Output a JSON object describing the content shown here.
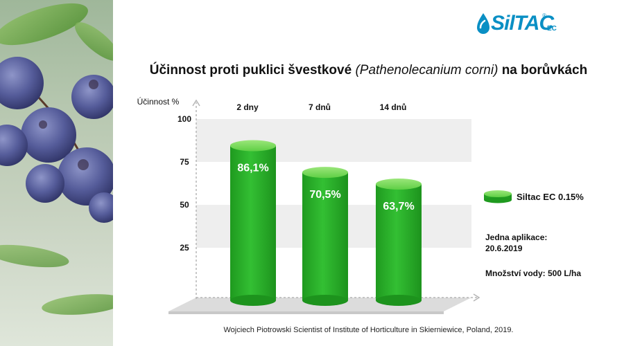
{
  "logo": {
    "brand": "SilTAC",
    "suffix": "EC",
    "registered": "®"
  },
  "title": {
    "main": "Účinnost proti puklici švestkové",
    "latin_name": "(Pathenolecanium corni)",
    "rest": "na borůvkách"
  },
  "chart_data": {
    "type": "bar",
    "title": "Účinnost proti puklici švestkové (Pathenolecanium corni) na borůvkách",
    "ylabel": "Účinnost %",
    "xlabel": "",
    "ylim": [
      0,
      100
    ],
    "yticks": [
      25,
      50,
      75,
      100
    ],
    "categories": [
      "2 dny",
      "7 dnů",
      "14 dnů"
    ],
    "series": [
      {
        "name": "Siltac EC 0.15%",
        "values": [
          86.1,
          70.5,
          63.7
        ],
        "labels": [
          "86,1%",
          "70,5%",
          "63,7%"
        ],
        "color": "#2db52d"
      }
    ],
    "grid": "alternating horizontal bands",
    "legend_position": "right"
  },
  "legend": {
    "label": "Siltac EC 0.15%"
  },
  "notes": {
    "application": "Jedna aplikace: 20.6.2019",
    "water": "Množství vody: 500 L/ha"
  },
  "source": "Wojciech Piotrowski Scientist of Institute of Horticulture in Skierniewice, Poland, 2019.",
  "colors": {
    "bar_green": "#2db52d",
    "bar_top": "#7fdc5f",
    "logo_blue": "#0a8fc4"
  }
}
